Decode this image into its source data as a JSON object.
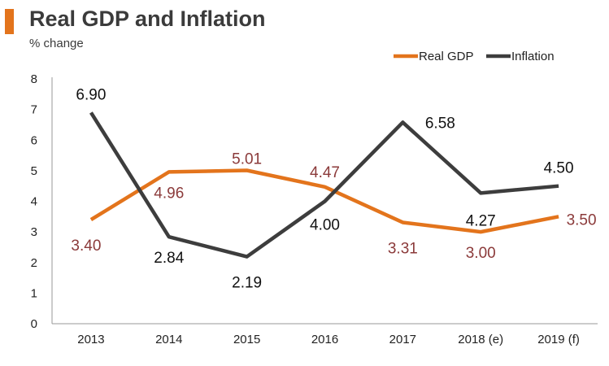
{
  "chart_data": {
    "type": "line",
    "title": "Real GDP and Inflation",
    "subtitle": "% change",
    "xlabel": "",
    "ylabel": "% change",
    "categories": [
      "2013",
      "2014",
      "2015",
      "2016",
      "2017",
      "2018 (e)",
      "2019 (f)"
    ],
    "ylim": [
      0,
      8
    ],
    "yticks": [
      "0",
      "1",
      "2",
      "3",
      "4",
      "5",
      "6",
      "7",
      "8"
    ],
    "legend_position": "top-right",
    "series": [
      {
        "name": "Real GDP",
        "color": "#e3741c",
        "label_color": "#8b3a3a",
        "values": [
          3.4,
          4.96,
          5.01,
          4.47,
          3.31,
          3.0,
          3.5
        ],
        "labels": [
          "3.40",
          "4.96",
          "5.01",
          "4.47",
          "3.31",
          "3.00",
          "3.50"
        ]
      },
      {
        "name": "Inflation",
        "color": "#3d3d3d",
        "label_color": "#111111",
        "values": [
          6.9,
          2.84,
          2.19,
          4.0,
          6.58,
          4.27,
          4.5
        ],
        "labels": [
          "6.90",
          "2.84",
          "2.19",
          "4.00",
          "6.58",
          "4.27",
          "4.50"
        ]
      }
    ]
  },
  "colors": {
    "accent": "#e3741c",
    "axis": "#999999"
  }
}
